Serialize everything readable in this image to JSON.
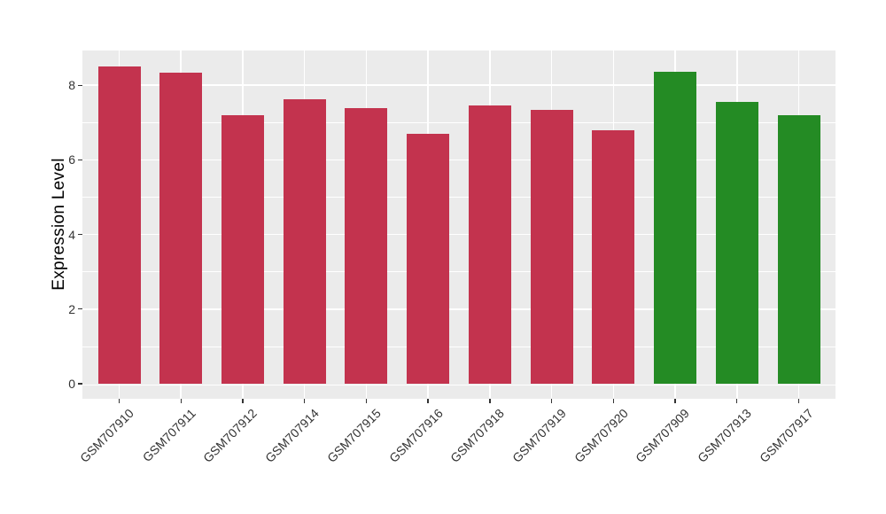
{
  "figure": {
    "background_color": "#FFFFFF",
    "panel_background_color": "#EBEBEB",
    "gridline_color": "#FFFFFF",
    "tick_mark_color": "#333333",
    "axis_text_color": "#333333",
    "axis_title_color": "#000000"
  },
  "chart_data": {
    "type": "bar",
    "title": "",
    "xlabel": "",
    "ylabel": "Expression Level",
    "categories": [
      "GSM707910",
      "GSM707911",
      "GSM707912",
      "GSM707914",
      "GSM707915",
      "GSM707916",
      "GSM707918",
      "GSM707919",
      "GSM707920",
      "GSM707909",
      "GSM707913",
      "GSM707917"
    ],
    "values": [
      8.5,
      8.33,
      7.19,
      7.62,
      7.38,
      6.7,
      7.47,
      7.33,
      6.8,
      8.37,
      7.55,
      7.19
    ],
    "bar_colors": [
      "#C3334E",
      "#C3334E",
      "#C3334E",
      "#C3334E",
      "#C3334E",
      "#C3334E",
      "#C3334E",
      "#C3334E",
      "#C3334E",
      "#248B24",
      "#248B24",
      "#248B24"
    ],
    "group_colors": {
      "red_group": "#C3334E",
      "green_group": "#248B24"
    },
    "yticks": [
      0,
      2,
      4,
      6,
      8
    ],
    "minor_yticks": [
      1,
      3,
      5,
      7
    ],
    "ylim": [
      -0.45,
      8.95
    ],
    "grid": true,
    "legend_position": "none",
    "x_tick_rotation_deg": 45
  }
}
